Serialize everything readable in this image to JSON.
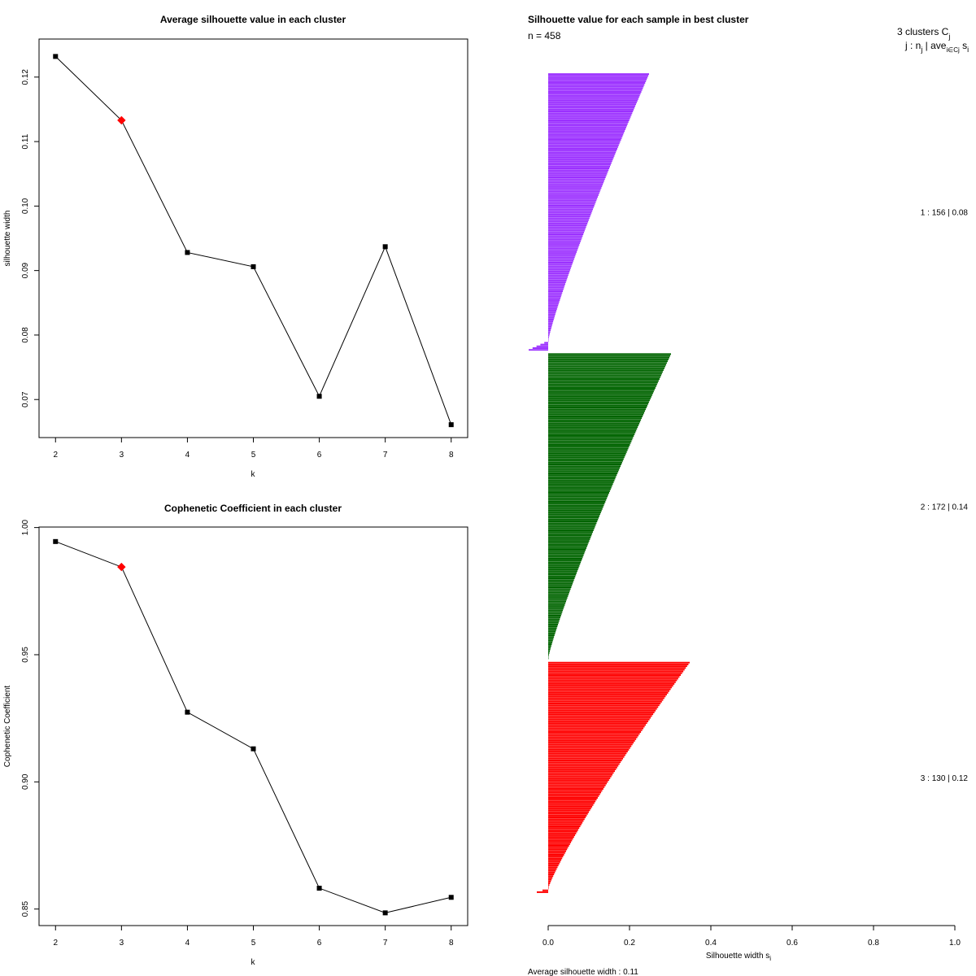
{
  "chart_data": [
    {
      "id": "avg_silhouette",
      "type": "line",
      "title": "Average silhouette value in each cluster",
      "xlabel": "k",
      "ylabel": "silhouette width",
      "x": [
        2,
        3,
        4,
        5,
        6,
        7,
        8
      ],
      "values": [
        0.1232,
        0.1133,
        0.0928,
        0.0906,
        0.0705,
        0.0937,
        0.0661
      ],
      "highlight_x": 3,
      "highlight_color": "#ff0000",
      "xticks": [
        "2",
        "3",
        "4",
        "5",
        "6",
        "7",
        "8"
      ],
      "yticks": [
        0.07,
        0.08,
        0.09,
        0.1,
        0.11,
        0.12
      ],
      "ytick_labels": [
        "0.07",
        "0.08",
        "0.09",
        "0.10",
        "0.11",
        "0.12"
      ],
      "xlim": [
        1.75,
        8.25
      ],
      "ylim": [
        0.0641,
        0.1259
      ]
    },
    {
      "id": "cophenetic",
      "type": "line",
      "title": "Cophenetic Coefficient in each cluster",
      "xlabel": "k",
      "ylabel": "Cophenetic Coefficient",
      "x": [
        2,
        3,
        4,
        5,
        6,
        7,
        8
      ],
      "values": [
        0.9945,
        0.9845,
        0.9274,
        0.913,
        0.8582,
        0.8485,
        0.8546
      ],
      "highlight_x": 3,
      "highlight_color": "#ff0000",
      "xticks": [
        "2",
        "3",
        "4",
        "5",
        "6",
        "7",
        "8"
      ],
      "yticks": [
        0.85,
        0.9,
        0.95,
        1.0
      ],
      "ytick_labels": [
        "0.85",
        "0.90",
        "0.95",
        "1.00"
      ],
      "xlim": [
        1.75,
        8.25
      ],
      "ylim": [
        0.8435,
        1.0002
      ]
    },
    {
      "id": "silhouette_plot",
      "type": "bar",
      "orientation": "horizontal",
      "title": "Silhouette value for each sample in best cluster",
      "n_label": "n = 458",
      "header_line1": "3  clusters  C",
      "header_sub1": "j",
      "header_line2": "j :  n",
      "header_sub2a": "j",
      "header_line2b": " | ave",
      "header_sub2b": "i∈Cj",
      "header_line2c": "  s",
      "header_sub2c": "i",
      "xlabel": "Silhouette width s",
      "xlabel_sub": "i",
      "footer": "Average silhouette width :  0.11",
      "xticks": [
        0.0,
        0.2,
        0.4,
        0.6,
        0.8,
        1.0
      ],
      "xtick_labels": [
        "0.0",
        "0.2",
        "0.4",
        "0.6",
        "0.8",
        "1.0"
      ],
      "xlim": [
        0,
        1
      ],
      "clusters": [
        {
          "id": 1,
          "n": 156,
          "avg": 0.08,
          "label": "1 :   156  |  0.08",
          "color": "#9b30ff",
          "max": 0.248,
          "min": -0.048,
          "neg_count": 5
        },
        {
          "id": 2,
          "n": 172,
          "avg": 0.14,
          "label": "2 :   172  |  0.14",
          "color": "#006400",
          "max": 0.302,
          "min": 0.003,
          "neg_count": 0
        },
        {
          "id": 3,
          "n": 130,
          "avg": 0.12,
          "label": "3 :   130  |  0.12",
          "color": "#ff0000",
          "max": 0.348,
          "min": -0.028,
          "neg_count": 2
        }
      ]
    }
  ]
}
